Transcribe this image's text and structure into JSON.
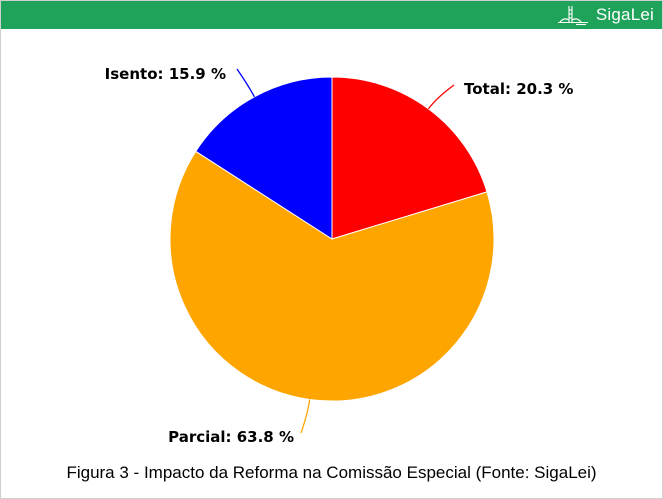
{
  "header": {
    "brand": "SigaLei",
    "icon": "capitol-building-icon",
    "bar_color": "#1fa35a"
  },
  "caption": {
    "figure": "Figura 3 -",
    "text": "Impacto da Reforma na Comissão Especial (Fonte: SigaLei)"
  },
  "chart_data": {
    "type": "pie",
    "title": "",
    "slices": [
      {
        "name": "Total",
        "value": 20.3,
        "label": "Total: 20.3 %",
        "color": "#ff0000"
      },
      {
        "name": "Parcial",
        "value": 63.8,
        "label": "Parcial: 63.8 %",
        "color": "#ffa500"
      },
      {
        "name": "Isento",
        "value": 15.9,
        "label": "Isento: 15.9 %",
        "color": "#0000ff"
      }
    ],
    "start": "top, clockwise",
    "legend": "none"
  }
}
